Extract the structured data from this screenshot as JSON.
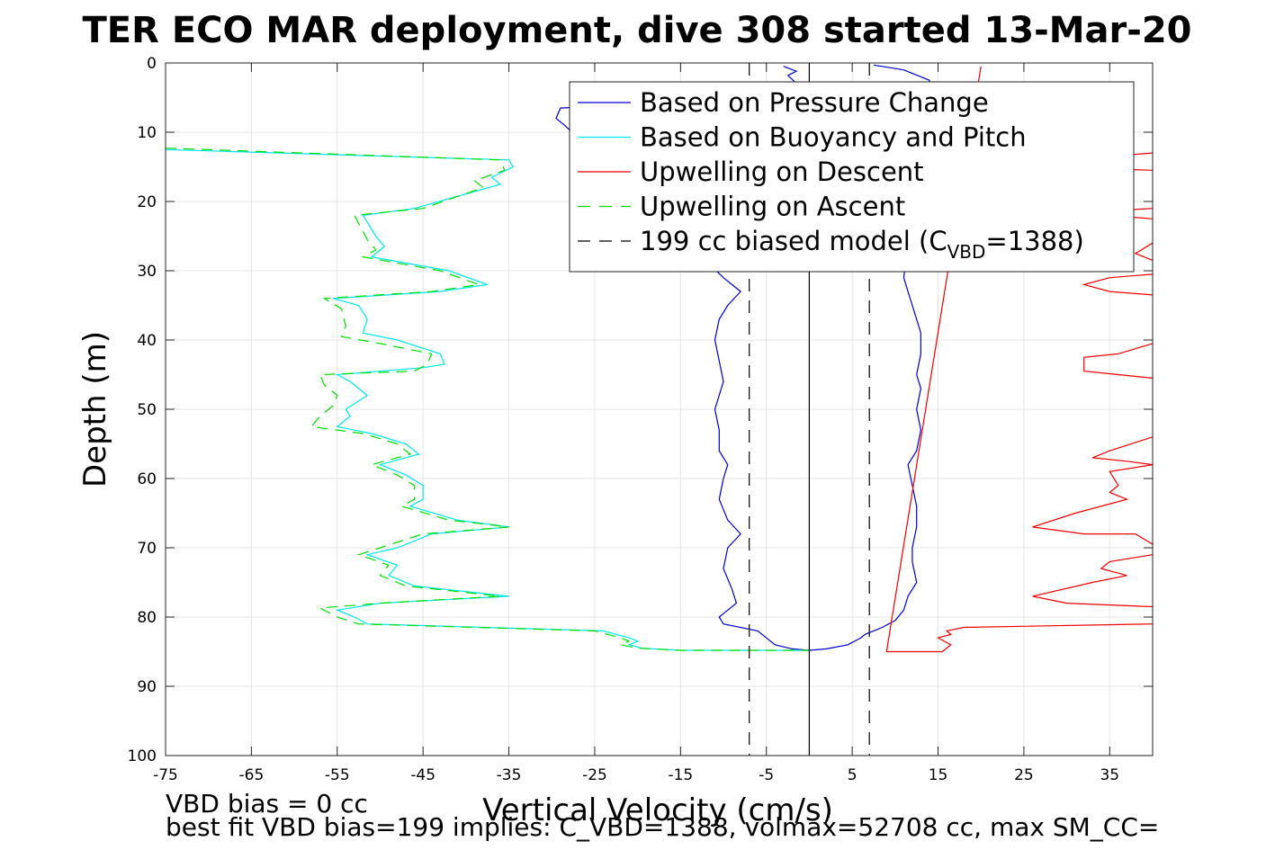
{
  "chart_data": {
    "type": "line",
    "title": "TER ECO MAR deployment, dive 308 started 13-Mar-20",
    "xlabel": "Vertical Velocity (cm/s)",
    "ylabel": "Depth (m)",
    "xlim": [
      -75,
      40
    ],
    "ylim": [
      0,
      100
    ],
    "y_reversed": true,
    "grid": true,
    "xticks": [
      -75,
      -65,
      -55,
      -45,
      -35,
      -25,
      -15,
      -5,
      5,
      15,
      25,
      35
    ],
    "xtick_labels": [
      "-75",
      "-65",
      "-55",
      "-45",
      "-35",
      "-25",
      "-15",
      "-5",
      "5",
      "15",
      "25",
      "35"
    ],
    "yticks": [
      0,
      10,
      20,
      30,
      40,
      50,
      60,
      70,
      80,
      90,
      100
    ],
    "ytick_labels": [
      "0",
      "10",
      "20",
      "30",
      "40",
      "50",
      "60",
      "70",
      "80",
      "90",
      "100"
    ],
    "legend_position": "top-right",
    "legend": [
      {
        "label": "Based on Pressure Change",
        "color": "#0000cc",
        "style": "solid"
      },
      {
        "label": "Based on Buoyancy and Pitch",
        "color": "#00e5ee",
        "style": "solid"
      },
      {
        "label": "Upwelling on Descent",
        "color": "#ee0000",
        "style": "solid"
      },
      {
        "label": "Upwelling on Ascent",
        "color": "#00dd00",
        "style": "dashed"
      },
      {
        "label": "199 cc biased model (C",
        "sub": "VBD",
        "tail": "=1388)",
        "color": "#000000",
        "style": "dashed"
      }
    ],
    "series": [
      {
        "name": "Based on Pressure Change",
        "color": "#0000cc",
        "dash": "",
        "points": [
          [
            -3,
            0.5
          ],
          [
            -1.5,
            1.2
          ],
          [
            -2.5,
            1.8
          ],
          [
            -1.8,
            2.6
          ],
          [
            -2.5,
            3.5
          ],
          [
            -8,
            5
          ],
          [
            -20,
            6
          ],
          [
            -29,
            6.5
          ],
          [
            -29.5,
            8
          ],
          [
            -28.5,
            9
          ],
          [
            -10,
            31
          ],
          [
            -8,
            33
          ],
          [
            -9.5,
            35
          ],
          [
            -10.5,
            37
          ],
          [
            -11,
            40
          ],
          [
            -10.5,
            43
          ],
          [
            -10,
            46
          ],
          [
            -10.5,
            48
          ],
          [
            -11,
            50
          ],
          [
            -10.5,
            53
          ],
          [
            -10.5,
            56
          ],
          [
            -9.5,
            58
          ],
          [
            -10,
            60
          ],
          [
            -10.5,
            63
          ],
          [
            -9.5,
            66
          ],
          [
            -8,
            68
          ],
          [
            -9.5,
            70
          ],
          [
            -10,
            73
          ],
          [
            -9,
            76
          ],
          [
            -8.5,
            78
          ],
          [
            -10.5,
            80
          ],
          [
            -10,
            81
          ],
          [
            -6,
            82
          ],
          [
            -4,
            84
          ],
          [
            -2,
            84.6
          ],
          [
            0,
            84.8
          ],
          [
            2,
            84.6
          ],
          [
            4.5,
            84
          ],
          [
            6,
            83
          ],
          [
            6.5,
            82.5
          ],
          [
            8.5,
            81.5
          ],
          [
            10,
            80.5
          ],
          [
            11,
            79
          ],
          [
            11.5,
            77
          ],
          [
            12.5,
            75
          ],
          [
            12,
            72
          ],
          [
            12,
            70
          ],
          [
            12.5,
            67
          ],
          [
            12.5,
            64
          ],
          [
            12,
            61
          ],
          [
            11.5,
            58
          ],
          [
            12.5,
            56
          ],
          [
            13,
            53
          ],
          [
            12.5,
            50
          ],
          [
            13,
            47
          ],
          [
            12.5,
            45
          ],
          [
            13,
            42
          ],
          [
            13,
            39
          ],
          [
            12.5,
            37
          ],
          [
            12,
            35
          ],
          [
            11.5,
            33
          ],
          [
            11,
            31
          ],
          [
            14,
            2.5
          ],
          [
            11,
            1
          ],
          [
            7.5,
            0.3
          ]
        ]
      },
      {
        "name": "Based on Buoyancy and Pitch",
        "color": "#00e5ee",
        "dash": "",
        "points": [
          [
            -75,
            12.5
          ],
          [
            -35,
            14
          ],
          [
            -34.5,
            15
          ],
          [
            -37,
            16.5
          ],
          [
            -36,
            17.5
          ],
          [
            -46,
            21
          ],
          [
            -52,
            22
          ],
          [
            -50.5,
            25
          ],
          [
            -49.5,
            26.5
          ],
          [
            -51,
            28
          ],
          [
            -42,
            30
          ],
          [
            -37.5,
            32
          ],
          [
            -43,
            33
          ],
          [
            -55.5,
            34
          ],
          [
            -52.5,
            35
          ],
          [
            -51.5,
            37
          ],
          [
            -52,
            39
          ],
          [
            -48,
            40
          ],
          [
            -43,
            42
          ],
          [
            -42.5,
            43.5
          ],
          [
            -45,
            44
          ],
          [
            -55,
            45
          ],
          [
            -53.5,
            46
          ],
          [
            -51.5,
            48
          ],
          [
            -54,
            50
          ],
          [
            -53.5,
            51
          ],
          [
            -55,
            52.5
          ],
          [
            -51,
            53.5
          ],
          [
            -47,
            55
          ],
          [
            -45.5,
            56.5
          ],
          [
            -50,
            58
          ],
          [
            -47,
            59.5
          ],
          [
            -45,
            61
          ],
          [
            -45,
            63
          ],
          [
            -46.5,
            64
          ],
          [
            -41,
            66
          ],
          [
            -35,
            67
          ],
          [
            -44,
            68
          ],
          [
            -48,
            70
          ],
          [
            -51.5,
            71
          ],
          [
            -48,
            72.5
          ],
          [
            -49,
            74
          ],
          [
            -46,
            75.5
          ],
          [
            -35,
            77
          ],
          [
            -50,
            78
          ],
          [
            -55,
            79
          ],
          [
            -53,
            80
          ],
          [
            -51.5,
            81
          ],
          [
            -24,
            82
          ],
          [
            -21,
            83
          ],
          [
            -20,
            83.5
          ],
          [
            -21,
            84
          ],
          [
            -19.5,
            84.5
          ],
          [
            -15,
            84.8
          ],
          [
            0,
            84.8
          ]
        ]
      },
      {
        "name": "Upwelling on Ascent",
        "color": "#00dd00",
        "dash": "12,8",
        "points": [
          [
            -75,
            12.3
          ],
          [
            -36,
            14
          ],
          [
            -35.5,
            15.5
          ],
          [
            -39,
            17
          ],
          [
            -38,
            18
          ],
          [
            -45,
            21
          ],
          [
            -53,
            22
          ],
          [
            -51.5,
            25.5
          ],
          [
            -50.5,
            27
          ],
          [
            -52,
            28
          ],
          [
            -43,
            30
          ],
          [
            -38.5,
            32
          ],
          [
            -44,
            33
          ],
          [
            -56.5,
            34
          ],
          [
            -54.5,
            35.5
          ],
          [
            -54,
            38
          ],
          [
            -54.5,
            39.5
          ],
          [
            -50,
            40.5
          ],
          [
            -44,
            42
          ],
          [
            -44.5,
            43.5
          ],
          [
            -46,
            44.5
          ],
          [
            -57,
            45
          ],
          [
            -56.5,
            46.5
          ],
          [
            -55,
            48
          ],
          [
            -55.5,
            49.5
          ],
          [
            -57,
            51
          ],
          [
            -58,
            52.5
          ],
          [
            -52,
            53.5
          ],
          [
            -48,
            55
          ],
          [
            -46.5,
            56.5
          ],
          [
            -51,
            58
          ],
          [
            -48,
            59.5
          ],
          [
            -46,
            61
          ],
          [
            -46,
            63
          ],
          [
            -47.5,
            64
          ],
          [
            -42,
            66
          ],
          [
            -35,
            67
          ],
          [
            -45,
            68
          ],
          [
            -50,
            70
          ],
          [
            -52.5,
            71
          ],
          [
            -49,
            72.5
          ],
          [
            -50,
            74
          ],
          [
            -47,
            75.5
          ],
          [
            -36,
            77
          ],
          [
            -50,
            78
          ],
          [
            -57,
            78.7
          ],
          [
            -55,
            80
          ],
          [
            -52.5,
            81
          ],
          [
            -25,
            82
          ],
          [
            -22,
            83
          ],
          [
            -21,
            83.5
          ],
          [
            -22,
            84
          ],
          [
            -20,
            84.5
          ],
          [
            -15,
            84.8
          ],
          [
            0,
            84.8
          ]
        ]
      },
      {
        "name": "Upwelling on Descent",
        "color": "#ee0000",
        "dash": "",
        "points": [
          [
            20,
            0.5
          ],
          [
            9,
            85
          ],
          [
            15.5,
            85
          ],
          [
            16.5,
            84
          ],
          [
            15,
            83
          ],
          [
            16.5,
            82.5
          ],
          [
            16,
            82
          ],
          [
            18,
            81.5
          ],
          [
            40,
            81
          ]
        ]
      },
      {
        "name": "Upwelling on Descent",
        "color": "#ee0000",
        "dash": "",
        "points": [
          [
            40,
            13
          ],
          [
            35,
            13.5
          ],
          [
            28,
            15
          ],
          [
            40,
            15.5
          ]
        ]
      },
      {
        "name": "Upwelling on Descent",
        "color": "#ee0000",
        "dash": "",
        "points": [
          [
            40,
            21
          ],
          [
            33,
            21.5
          ],
          [
            35,
            22
          ],
          [
            40,
            22.5
          ]
        ]
      },
      {
        "name": "Upwelling on Descent",
        "color": "#ee0000",
        "dash": "",
        "points": [
          [
            40,
            26
          ],
          [
            38,
            27.5
          ],
          [
            40,
            28.5
          ]
        ]
      },
      {
        "name": "Upwelling on Descent",
        "color": "#ee0000",
        "dash": "",
        "points": [
          [
            40,
            30.5
          ],
          [
            35,
            31
          ],
          [
            32,
            32
          ],
          [
            35,
            33
          ],
          [
            40,
            33.5
          ]
        ]
      },
      {
        "name": "Upwelling on Descent",
        "color": "#ee0000",
        "dash": "",
        "points": [
          [
            40,
            40.5
          ],
          [
            36,
            42
          ],
          [
            32,
            42.5
          ],
          [
            32,
            44.5
          ],
          [
            36,
            45
          ],
          [
            40,
            45.5
          ]
        ]
      },
      {
        "name": "Upwelling on Descent",
        "color": "#ee0000",
        "dash": "",
        "points": [
          [
            40,
            54
          ],
          [
            35,
            56
          ],
          [
            33,
            57
          ],
          [
            37,
            57.5
          ],
          [
            40,
            58
          ]
        ]
      },
      {
        "name": "Upwelling on Descent",
        "color": "#ee0000",
        "dash": "",
        "points": [
          [
            40,
            58
          ],
          [
            35,
            59
          ],
          [
            36,
            61
          ],
          [
            35,
            62
          ],
          [
            37,
            63
          ],
          [
            31,
            65
          ],
          [
            26,
            67
          ],
          [
            32,
            68
          ],
          [
            38,
            68
          ],
          [
            40,
            69.5
          ]
        ]
      },
      {
        "name": "Upwelling on Descent",
        "color": "#ee0000",
        "dash": "",
        "points": [
          [
            40,
            71
          ],
          [
            35,
            72
          ],
          [
            34,
            73
          ],
          [
            37,
            74
          ],
          [
            33,
            75
          ],
          [
            26,
            77
          ],
          [
            30,
            78
          ],
          [
            40,
            78.5
          ]
        ]
      },
      {
        "name": "199 cc biased model (C_VBD=1388)",
        "color": "#000000",
        "dash": "14,10",
        "points": [
          [
            -7,
            0
          ],
          [
            -7,
            100
          ]
        ]
      },
      {
        "name": "199 cc biased model (C_VBD=1388)",
        "color": "#000000",
        "dash": "14,10",
        "points": [
          [
            7,
            0
          ],
          [
            7,
            100
          ]
        ]
      },
      {
        "name": "",
        "color": "#000000",
        "dash": "",
        "points": [
          [
            0,
            0
          ],
          [
            0,
            100
          ]
        ]
      }
    ],
    "annotations": [
      "VBD bias = 0 cc",
      "best fit VBD bias=199 implies: C_VBD=1388, volmax=52708 cc, max SM_CC="
    ]
  }
}
